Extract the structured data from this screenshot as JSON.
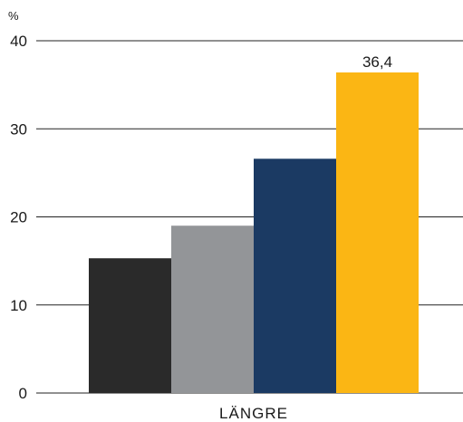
{
  "chart_data": {
    "type": "bar",
    "unit": "%",
    "categories": [
      "LÄNGRE"
    ],
    "series": [
      {
        "values": [
          15.3
        ],
        "color": "#2a2a2a"
      },
      {
        "values": [
          19.0
        ],
        "color": "#939598"
      },
      {
        "values": [
          26.6
        ],
        "color": "#1b3a63"
      },
      {
        "values": [
          36.4
        ],
        "color": "#fbb614",
        "data_label": "36,4"
      }
    ],
    "ylim": [
      0,
      40
    ],
    "yticks": [
      "0",
      "10",
      "20",
      "30",
      "40"
    ],
    "grid": true,
    "legend": "none"
  }
}
